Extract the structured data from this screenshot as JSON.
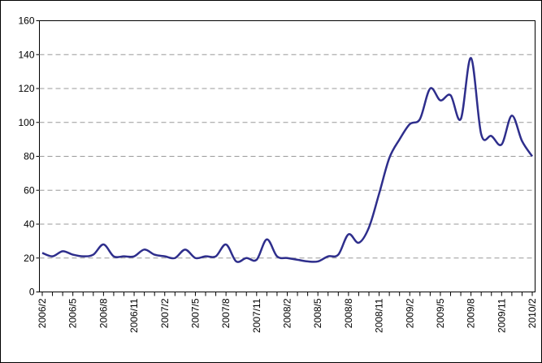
{
  "chart_data": {
    "type": "line",
    "categories": [
      "2006/2",
      null,
      null,
      "2006/5",
      null,
      null,
      "2006/8",
      null,
      null,
      "2006/11",
      null,
      null,
      "2007/2",
      null,
      null,
      "2007/5",
      null,
      null,
      "2007/8",
      null,
      null,
      "2007/11",
      null,
      null,
      "2008/2",
      null,
      null,
      "2008/5",
      null,
      null,
      "2008/8",
      null,
      null,
      "2008/11",
      null,
      null,
      "2009/2",
      null,
      null,
      "2009/5",
      null,
      null,
      "2009/8",
      null,
      null,
      "2009/11",
      null,
      null,
      "2010/2"
    ],
    "values": [
      23,
      21,
      24,
      22,
      21,
      22,
      28,
      21,
      21,
      21,
      25,
      22,
      21,
      20,
      25,
      20,
      21,
      21,
      28,
      18,
      20,
      19,
      31,
      21,
      20,
      19,
      18,
      18,
      21,
      22,
      34,
      29,
      38,
      58,
      79,
      90,
      99,
      102,
      120,
      113,
      116,
      102,
      138,
      93,
      92,
      87,
      104,
      89,
      80
    ],
    "color": "#2e2e8c",
    "ylim": [
      0,
      160
    ],
    "yticks": [
      0,
      20,
      40,
      60,
      80,
      100,
      120,
      140,
      160
    ],
    "grid": true
  }
}
